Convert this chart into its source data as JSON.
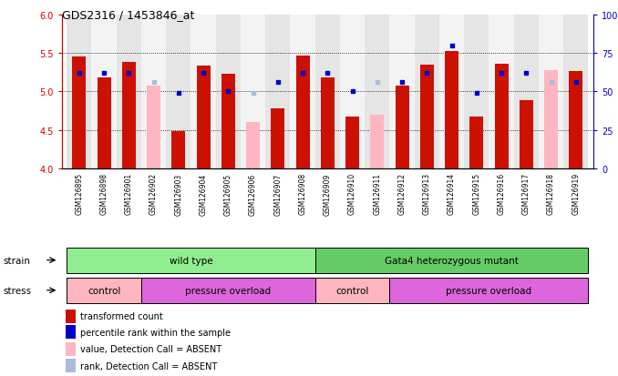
{
  "title": "GDS2316 / 1453846_at",
  "samples": [
    "GSM126895",
    "GSM126898",
    "GSM126901",
    "GSM126902",
    "GSM126903",
    "GSM126904",
    "GSM126905",
    "GSM126906",
    "GSM126907",
    "GSM126908",
    "GSM126909",
    "GSM126910",
    "GSM126911",
    "GSM126912",
    "GSM126913",
    "GSM126914",
    "GSM126915",
    "GSM126916",
    "GSM126917",
    "GSM126918",
    "GSM126919"
  ],
  "red_values": [
    5.45,
    5.18,
    5.38,
    null,
    4.49,
    5.33,
    5.23,
    null,
    4.78,
    5.47,
    5.18,
    4.68,
    null,
    5.08,
    5.35,
    5.52,
    4.68,
    5.36,
    4.89,
    null,
    5.27
  ],
  "pink_values": [
    null,
    null,
    null,
    5.07,
    null,
    null,
    null,
    4.6,
    null,
    null,
    null,
    null,
    4.7,
    null,
    null,
    null,
    null,
    null,
    null,
    5.28,
    null
  ],
  "blue_ranks": [
    62,
    62,
    62,
    null,
    49,
    62,
    50,
    null,
    56,
    62,
    62,
    50,
    null,
    56,
    62,
    80,
    49,
    62,
    62,
    null,
    56
  ],
  "light_blue_ranks": [
    null,
    null,
    null,
    56,
    null,
    null,
    null,
    49,
    null,
    null,
    null,
    null,
    56,
    null,
    null,
    null,
    null,
    null,
    null,
    56,
    null
  ],
  "ylim_left": [
    4.0,
    6.0
  ],
  "ylim_right": [
    0,
    100
  ],
  "yticks_left": [
    4.0,
    4.5,
    5.0,
    5.5,
    6.0
  ],
  "yticks_right": [
    0,
    25,
    50,
    75,
    100
  ],
  "ytick_labels_right": [
    "0",
    "25",
    "50",
    "75",
    "100%"
  ],
  "strain_groups": [
    {
      "label": "wild type",
      "start": 0,
      "end": 9,
      "color": "#90EE90"
    },
    {
      "label": "Gata4 heterozygous mutant",
      "start": 10,
      "end": 20,
      "color": "#66CC66"
    }
  ],
  "stress_groups": [
    {
      "label": "control",
      "start": 0,
      "end": 2,
      "color": "#FFB6C1"
    },
    {
      "label": "pressure overload",
      "start": 3,
      "end": 9,
      "color": "#DD66DD"
    },
    {
      "label": "control",
      "start": 10,
      "end": 12,
      "color": "#FFB6C1"
    },
    {
      "label": "pressure overload",
      "start": 13,
      "end": 20,
      "color": "#DD66DD"
    }
  ],
  "bar_color_red": "#CC1100",
  "bar_color_pink": "#FFB6C1",
  "dot_color_blue": "#0000CC",
  "dot_color_lightblue": "#AABBDD",
  "left_axis_color": "#CC0000",
  "right_axis_color": "#0000CC",
  "baseline": 4.0,
  "bar_width": 0.55,
  "legend_items": [
    {
      "color": "#CC1100",
      "label": "transformed count",
      "square": true
    },
    {
      "color": "#0000CC",
      "label": "percentile rank within the sample",
      "square": true
    },
    {
      "color": "#FFB6C1",
      "label": "value, Detection Call = ABSENT",
      "square": true
    },
    {
      "color": "#AABBDD",
      "label": "rank, Detection Call = ABSENT",
      "square": true
    }
  ]
}
